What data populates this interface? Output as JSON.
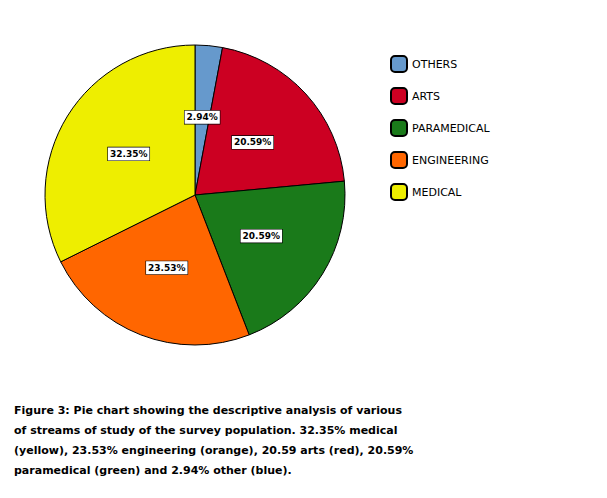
{
  "chart_data": {
    "type": "pie",
    "categories": [
      "OTHERS",
      "ARTS",
      "PARAMEDICAL",
      "ENGINEERING",
      "MEDICAL"
    ],
    "values": [
      2.94,
      20.59,
      20.59,
      23.53,
      32.35
    ],
    "value_labels": [
      "2.94%",
      "20.59%",
      "20.59%",
      "23.53%",
      "32.35%"
    ],
    "colors": [
      "#6699CC",
      "#CC0022",
      "#1A7A1A",
      "#FF6600",
      "#EEEE00"
    ],
    "data_labels": true,
    "legend": "right",
    "annotations": [
      "Figure 3: Pie chart showing the descriptive analysis of various",
      "of streams of study of the survey population. 32.35% medical",
      "(yellow), 23.53% engineering (orange), 20.59 arts (red), 20.59%",
      "paramedical (green) and 2.94% other (blue)."
    ]
  }
}
